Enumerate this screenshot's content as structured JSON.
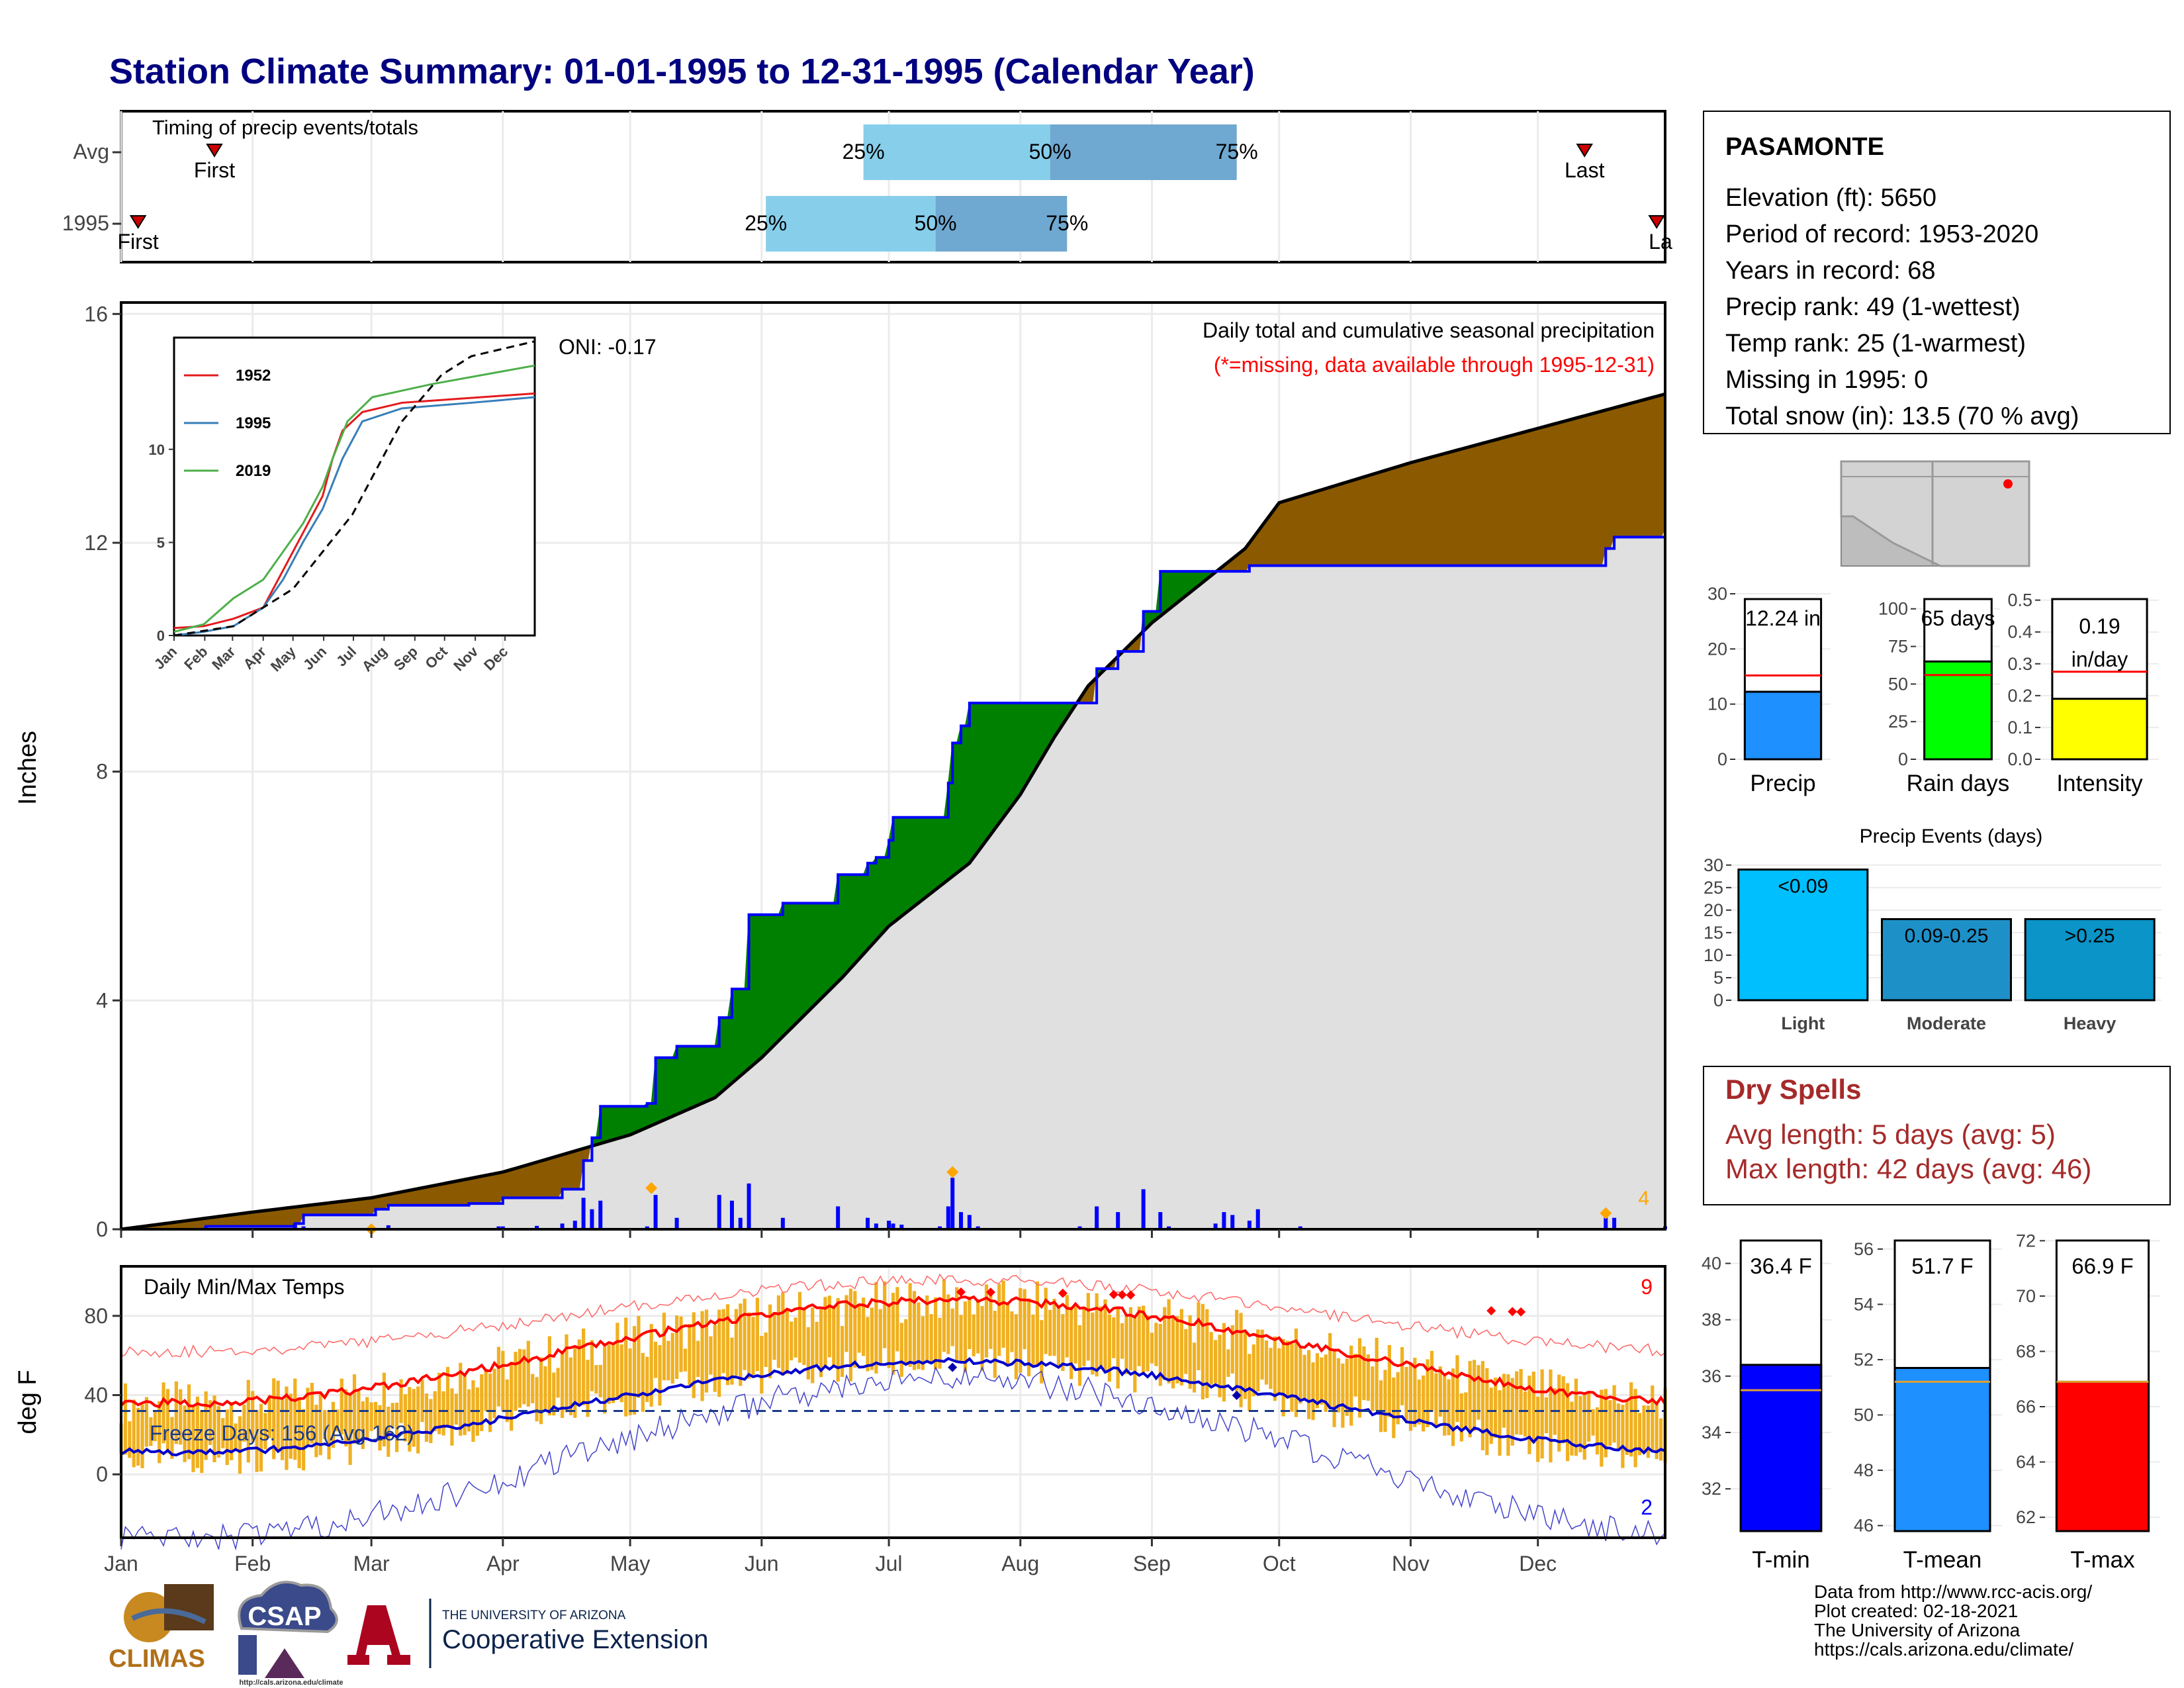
{
  "title": "Station Climate Summary: 01-01-1995 to 12-31-1995 (Calendar Year)",
  "colors": {
    "title": "#000080",
    "precip_above": "#8B5A00",
    "precip_below": "#008000",
    "avg_fill": "#e0e0e0",
    "year_line": "#0000ff",
    "tmax_line": "#ff0000",
    "tmin_line": "#0000cc",
    "temp_bars": "#f0b020",
    "q1": "#87ceeb",
    "q2": "#6fa8d0"
  },
  "months": [
    "Jan",
    "Feb",
    "Mar",
    "Apr",
    "May",
    "Jun",
    "Jul",
    "Aug",
    "Sep",
    "Oct",
    "Nov",
    "Dec"
  ],
  "timing": {
    "label": "Timing of precip events/totals",
    "rows": [
      {
        "name": "Avg",
        "first_day": 22,
        "q25_day": 175,
        "q50_day": 219,
        "q75_day": 263,
        "last_day": 345,
        "first_label": "First",
        "last_label": "Last",
        "q_labels": [
          "25%",
          "50%",
          "75%"
        ]
      },
      {
        "name": "1995",
        "first_day": 4,
        "q25_day": 152,
        "q50_day": 192,
        "q75_day": 223,
        "last_day": 362,
        "first_label": "First",
        "last_label": "Last",
        "q_labels": [
          "25%",
          "50%",
          "75%"
        ]
      }
    ]
  },
  "main_chart": {
    "ylabel": "Inches",
    "yticks": [
      0,
      4,
      8,
      12,
      16
    ],
    "ylim": [
      0,
      16.2
    ],
    "caption": "Daily total and cumulative seasonal precipitation",
    "missing_note": "(*=missing, data available through 1995-12-31)",
    "oni": "ONI: -0.17",
    "corner_count": "4",
    "avg_cum": [
      [
        0,
        0
      ],
      [
        31,
        0.3
      ],
      [
        59,
        0.55
      ],
      [
        90,
        1.0
      ],
      [
        120,
        1.65
      ],
      [
        140,
        2.3
      ],
      [
        151,
        3.0
      ],
      [
        170,
        4.4
      ],
      [
        181,
        5.3
      ],
      [
        200,
        6.4
      ],
      [
        212,
        7.6
      ],
      [
        220,
        8.6
      ],
      [
        228,
        9.5
      ],
      [
        243,
        10.6
      ],
      [
        265,
        11.9
      ],
      [
        273,
        12.7
      ],
      [
        304,
        13.4
      ],
      [
        334,
        14.0
      ],
      [
        364,
        14.6
      ]
    ],
    "year_cum": [
      [
        0,
        0
      ],
      [
        20,
        0.05
      ],
      [
        41,
        0.1
      ],
      [
        43,
        0.25
      ],
      [
        60,
        0.35
      ],
      [
        63,
        0.42
      ],
      [
        82,
        0.45
      ],
      [
        90,
        0.55
      ],
      [
        104,
        0.7
      ],
      [
        109,
        1.2
      ],
      [
        111,
        1.6
      ],
      [
        113,
        2.15
      ],
      [
        124,
        2.2
      ],
      [
        126,
        3.0
      ],
      [
        131,
        3.2
      ],
      [
        141,
        3.7
      ],
      [
        144,
        4.2
      ],
      [
        148,
        5.5
      ],
      [
        156,
        5.7
      ],
      [
        168,
        5.7
      ],
      [
        169,
        6.2
      ],
      [
        176,
        6.4
      ],
      [
        178,
        6.5
      ],
      [
        181,
        6.8
      ],
      [
        182,
        7.2
      ],
      [
        193,
        7.2
      ],
      [
        195,
        7.8
      ],
      [
        196,
        8.5
      ],
      [
        198,
        8.8
      ],
      [
        200,
        9.2
      ],
      [
        213,
        9.2
      ],
      [
        228,
        9.2
      ],
      [
        230,
        9.8
      ],
      [
        235,
        10.1
      ],
      [
        240,
        10.1
      ],
      [
        241,
        10.8
      ],
      [
        243,
        10.8
      ],
      [
        245,
        11.5
      ],
      [
        258,
        11.5
      ],
      [
        266,
        11.6
      ],
      [
        300,
        11.6
      ],
      [
        350,
        11.9
      ],
      [
        352,
        12.1
      ],
      [
        364,
        12.24
      ]
    ],
    "daily_precip": [
      [
        20,
        0.05
      ],
      [
        41,
        0.1
      ],
      [
        43,
        0.05
      ],
      [
        48,
        0.02
      ],
      [
        63,
        0.07
      ],
      [
        75,
        0.02
      ],
      [
        89,
        0.05
      ],
      [
        90,
        0.05
      ],
      [
        98,
        0.06
      ],
      [
        104,
        0.1
      ],
      [
        107,
        0.15
      ],
      [
        109,
        0.55
      ],
      [
        111,
        0.35
      ],
      [
        113,
        0.5
      ],
      [
        124,
        0.05
      ],
      [
        126,
        0.6
      ],
      [
        131,
        0.2
      ],
      [
        141,
        0.6
      ],
      [
        144,
        0.5
      ],
      [
        146,
        0.2
      ],
      [
        148,
        0.8
      ],
      [
        156,
        0.2
      ],
      [
        161,
        0.02
      ],
      [
        169,
        0.4
      ],
      [
        176,
        0.2
      ],
      [
        178,
        0.1
      ],
      [
        181,
        0.15
      ],
      [
        182,
        0.1
      ],
      [
        184,
        0.08
      ],
      [
        193,
        0.05
      ],
      [
        195,
        0.4
      ],
      [
        196,
        0.9
      ],
      [
        198,
        0.3
      ],
      [
        200,
        0.25
      ],
      [
        202,
        0.05
      ],
      [
        226,
        0.05
      ],
      [
        230,
        0.4
      ],
      [
        235,
        0.3
      ],
      [
        241,
        0.7
      ],
      [
        245,
        0.3
      ],
      [
        247,
        0.05
      ],
      [
        258,
        0.1
      ],
      [
        260,
        0.3
      ],
      [
        262,
        0.25
      ],
      [
        266,
        0.15
      ],
      [
        268,
        0.35
      ],
      [
        278,
        0.05
      ],
      [
        280,
        0.02
      ],
      [
        350,
        0.2
      ],
      [
        352,
        0.2
      ],
      [
        364,
        0.05
      ]
    ],
    "markers_orange": [
      [
        59,
        0.0
      ],
      [
        125,
        0.72
      ],
      [
        196,
        1.0
      ],
      [
        350,
        0.28
      ]
    ],
    "inset": {
      "yticks": [
        0,
        5,
        10
      ],
      "months": [
        "Jan",
        "Feb",
        "Mar",
        "Apr",
        "May",
        "Jun",
        "Jul",
        "Aug",
        "Sep",
        "Oct",
        "Nov",
        "Dec"
      ],
      "series": [
        {
          "name": "1952",
          "color": "#e41a1c",
          "points": [
            [
              0,
              0.4
            ],
            [
              30,
              0.5
            ],
            [
              60,
              0.9
            ],
            [
              90,
              1.5
            ],
            [
              110,
              3.5
            ],
            [
              130,
              5.5
            ],
            [
              150,
              7.5
            ],
            [
              160,
              9.5
            ],
            [
              170,
              11.0
            ],
            [
              190,
              12.0
            ],
            [
              230,
              12.5
            ],
            [
              364,
              13.0
            ]
          ]
        },
        {
          "name": "1995",
          "color": "#377eb8",
          "points": [
            [
              0,
              0.0
            ],
            [
              30,
              0.2
            ],
            [
              60,
              0.5
            ],
            [
              90,
              1.5
            ],
            [
              110,
              3.0
            ],
            [
              130,
              5.0
            ],
            [
              150,
              6.8
            ],
            [
              170,
              9.5
            ],
            [
              190,
              11.5
            ],
            [
              230,
              12.2
            ],
            [
              300,
              12.5
            ],
            [
              364,
              12.8
            ]
          ]
        },
        {
          "name": "2019",
          "color": "#4daf4a",
          "points": [
            [
              0,
              0.2
            ],
            [
              30,
              0.6
            ],
            [
              60,
              2.0
            ],
            [
              90,
              3.0
            ],
            [
              110,
              4.5
            ],
            [
              130,
              6.0
            ],
            [
              150,
              8.0
            ],
            [
              160,
              9.5
            ],
            [
              175,
              11.5
            ],
            [
              200,
              12.8
            ],
            [
              260,
              13.5
            ],
            [
              364,
              14.5
            ]
          ]
        }
      ],
      "dashed": [
        [
          0,
          0
        ],
        [
          60,
          0.5
        ],
        [
          120,
          2.5
        ],
        [
          180,
          6.5
        ],
        [
          230,
          11.5
        ],
        [
          270,
          14.0
        ],
        [
          300,
          15.0
        ],
        [
          364,
          15.8
        ]
      ],
      "ylim": [
        0,
        16
      ]
    }
  },
  "temp_chart": {
    "label": "Daily Min/Max Temps",
    "ylabel": "deg F",
    "yticks": [
      0,
      40,
      80
    ],
    "ylim": [
      -32,
      105
    ],
    "freeze_label": "Freeze Days: 156 (Avg 162)",
    "count_hot": "9",
    "count_cold": "2",
    "freeze_line": 32
  },
  "station": {
    "name": "PASAMONTE",
    "lines": [
      "Elevation (ft): 5650",
      "Period of record: 1953-2020",
      "Years in record: 68",
      "Precip rank: 49 (1-wettest)",
      "Temp rank: 25 (1-warmest)",
      "Missing in 1995: 0",
      "Total snow (in): 13.5 (70 % avg)"
    ]
  },
  "summary_bars": [
    {
      "label": "Precip",
      "value": 12.24,
      "text": "12.24 in",
      "avg": 15.2,
      "yticks": [
        0,
        10,
        20,
        30
      ],
      "ymax": 30,
      "color": "#1e90ff"
    },
    {
      "label": "Rain days",
      "value": 65,
      "text": "65 days",
      "avg": 56,
      "yticks": [
        0,
        25,
        50,
        75,
        100
      ],
      "ymax": 110,
      "color": "#00ff00"
    },
    {
      "label": "Intensity",
      "value": 0.19,
      "text": "0.19 in/day",
      "text_lines": [
        "0.19",
        "in/day"
      ],
      "avg": 0.275,
      "yticks": [
        0.0,
        0.1,
        0.2,
        0.3,
        0.4,
        0.5
      ],
      "ymax": 0.52,
      "color": "#ffff00",
      "ytick_labels": [
        "0.0",
        "0.1",
        "0.2",
        "0.3",
        "0.4",
        "0.5"
      ]
    }
  ],
  "events": {
    "title": "Precip Events (days)",
    "yticks": [
      0,
      5,
      10,
      15,
      20,
      25,
      30
    ],
    "categories": [
      "Light",
      "Moderate",
      "Heavy"
    ],
    "values": [
      29,
      18,
      18
    ],
    "bar_labels": [
      "<0.09",
      "0.09-0.25",
      ">0.25"
    ],
    "colors": [
      "#00bfff",
      "#1e90c8",
      "#0a94c8"
    ]
  },
  "dry_spells": {
    "title": "Dry Spells",
    "lines": [
      "Avg length: 5 days (avg: 5)",
      "Max length: 42 days (avg: 46)"
    ]
  },
  "temp_bars": [
    {
      "label": "T-min",
      "value": 36.4,
      "text": "36.4 F",
      "avg": 35.5,
      "ymin": 30.5,
      "ymax": 41,
      "yticks": [
        32,
        34,
        36,
        38,
        40
      ],
      "color": "#0000ff"
    },
    {
      "label": "T-mean",
      "value": 51.7,
      "text": "51.7 F",
      "avg": 51.2,
      "ymin": 45.8,
      "ymax": 56.5,
      "yticks": [
        46,
        48,
        50,
        52,
        54,
        56
      ],
      "color": "#1e90ff"
    },
    {
      "label": "T-max",
      "value": 66.9,
      "text": "66.9 F",
      "avg": 66.9,
      "ymin": 61.5,
      "ymax": 72.2,
      "yticks": [
        62,
        64,
        66,
        68,
        70,
        72
      ],
      "color": "#ff0000"
    }
  ],
  "footer": {
    "credits": [
      "Data from http://www.rcc-acis.org/",
      "Plot created: 02-18-2021",
      "The University of Arizona",
      "https://cals.arizona.edu/climate/"
    ],
    "climas": "CLIMAS",
    "csap": "CSAP",
    "csap_url": "http://cals.arizona.edu/climate",
    "ua_small": "THE UNIVERSITY OF ARIZONA",
    "ua_big": "Cooperative Extension"
  }
}
